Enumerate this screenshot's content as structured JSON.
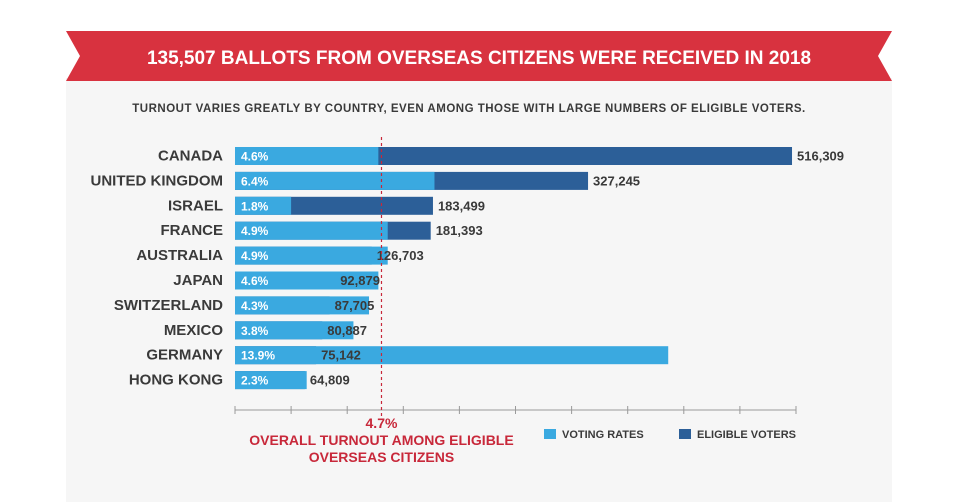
{
  "colors": {
    "banner": "#d8323f",
    "banner_text": "#ffffff",
    "background_panel": "#f6f6f6",
    "voting_rate": "#3aa9e0",
    "eligible": "#2c5f98",
    "reference": "#c8283a",
    "text": "#3a3a3a"
  },
  "banner": {
    "title": "135,507 BALLOTS FROM OVERSEAS CITIZENS WERE RECEIVED IN 2018"
  },
  "subtitle": "TURNOUT VARIES GREATLY BY COUNTRY, EVEN AMONG THOSE WITH LARGE NUMBERS OF ELIGIBLE VOTERS.",
  "chart_data": {
    "type": "bar",
    "orientation": "horizontal",
    "categories": [
      "CANADA",
      "UNITED KINGDOM",
      "ISRAEL",
      "FRANCE",
      "AUSTRALIA",
      "JAPAN",
      "SWITZERLAND",
      "MEXICO",
      "GERMANY",
      "HONG KONG"
    ],
    "series": [
      {
        "name": "ELIGIBLE VOTERS",
        "values": [
          516309,
          327245,
          183499,
          181393,
          126703,
          92879,
          87705,
          80887,
          75142,
          64809
        ],
        "labels": [
          "516,309",
          "327,245",
          "183,499",
          "181,393",
          "126,703",
          "92,879",
          "87,705",
          "80,887",
          "75,142",
          "64,809"
        ]
      },
      {
        "name": "VOTING RATES",
        "values": [
          4.6,
          6.4,
          1.8,
          4.9,
          4.9,
          4.6,
          4.3,
          3.8,
          13.9,
          2.3
        ],
        "labels": [
          "4.6%",
          "6.4%",
          "1.8%",
          "4.9%",
          "4.9%",
          "4.6%",
          "4.3%",
          "3.8%",
          "13.9%",
          "2.3%"
        ]
      }
    ],
    "eligible_axis_max": 520000,
    "rate_axis_max": 18,
    "axis_ticks": 10,
    "reference_line": {
      "value": 4.7,
      "value_label": "4.7%",
      "label_lines": [
        "OVERALL TURNOUT AMONG ELIGIBLE",
        "OVERSEAS CITIZENS"
      ]
    },
    "legend": {
      "position": "bottom-right",
      "items": [
        "VOTING RATES",
        "ELIGIBLE VOTERS"
      ]
    }
  }
}
